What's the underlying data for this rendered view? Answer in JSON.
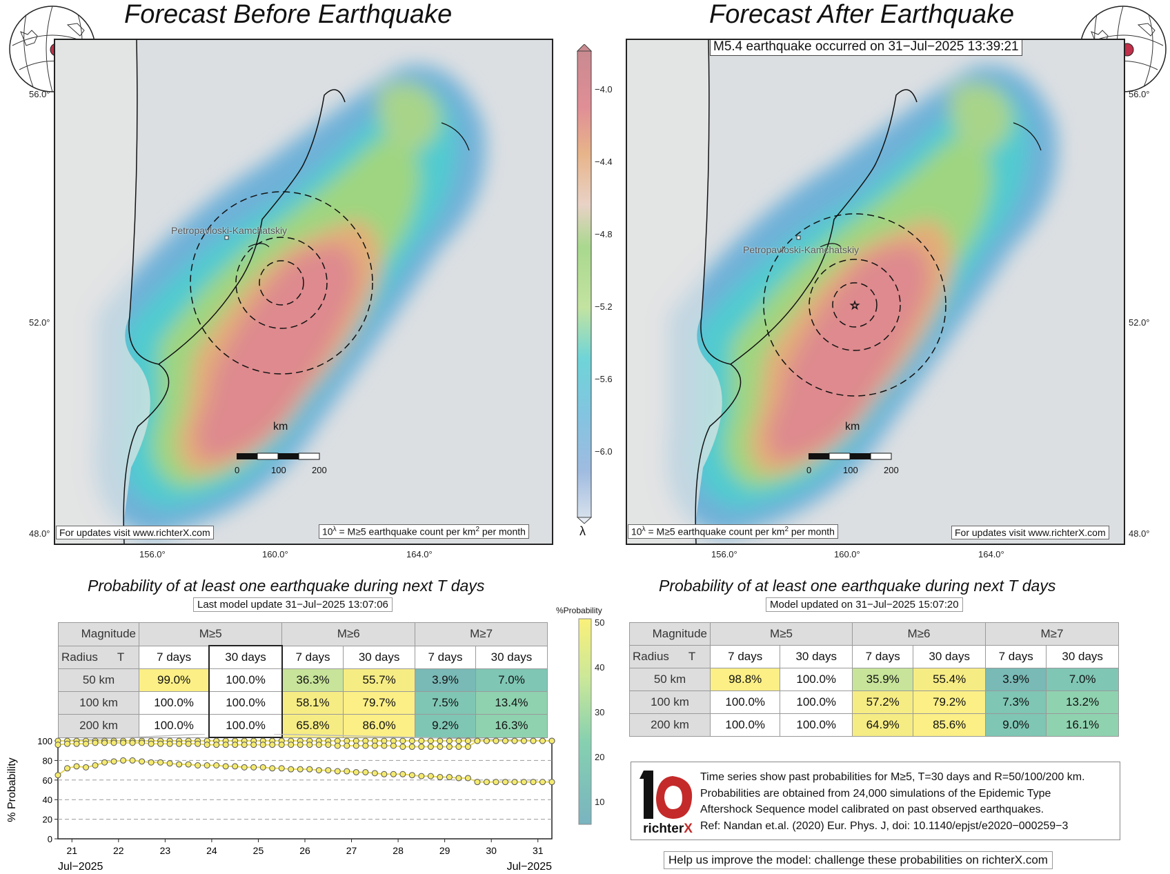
{
  "left_panel": {
    "title": "Forecast Before Earthquake",
    "city": "Petropavloski-Kamchatskiy",
    "km_label": "km",
    "scale": [
      "0",
      "100",
      "200"
    ],
    "footer_left": "For updates visit www.richterX.com",
    "footer_right_pre": "10",
    "footer_right_sup": "λ",
    "footer_right_mid": " = M≥5 earthquake count per km",
    "footer_right_sup2": "2",
    "footer_right_post": " per month",
    "lat_ticks": [
      "56.0°",
      "52.0°",
      "48.0°"
    ],
    "lon_ticks": [
      "156.0°",
      "160.0°",
      "164.0°"
    ]
  },
  "right_panel": {
    "title": "Forecast After Earthquake",
    "event": "M5.4 earthquake occurred on 31−Jul−2025 13:39:21",
    "city": "Petropavloski-Kamchatskiy",
    "km_label": "km",
    "scale": [
      "0",
      "100",
      "200"
    ],
    "footer_left_pre": "10",
    "footer_left_sup": "λ",
    "footer_left_mid": " = M≥5 earthquake count per km",
    "footer_left_sup2": "2",
    "footer_left_post": " per month",
    "footer_right": "For updates visit www.richterX.com",
    "lat_ticks": [
      "56.0°",
      "52.0°",
      "48.0°"
    ],
    "lon_ticks": [
      "156.0°",
      "160.0°",
      "164.0°"
    ]
  },
  "lambda_colorbar": {
    "ticks": [
      "−4.0",
      "−4.4",
      "−4.8",
      "−5.2",
      "−5.6",
      "−6.0"
    ],
    "label": "λ"
  },
  "prob_colorbar": {
    "label": "%Probability",
    "ticks": [
      "50",
      "40",
      "30",
      "20",
      "10"
    ]
  },
  "left_table": {
    "subtitle": "Probability of at least one earthquake during next T days",
    "update": "Last model update 31−Jul−2025 13:07:06",
    "corner_top": "Magnitude",
    "corner_radius": "Radius",
    "corner_t": "T",
    "mags": [
      "M≥5",
      "M≥6",
      "M≥7"
    ],
    "periods": [
      "7 days",
      "30 days",
      "7 days",
      "30 days",
      "7 days",
      "30 days"
    ],
    "rows": [
      {
        "radius": "50 km",
        "values": [
          "99.0%",
          "100.0%",
          "36.3%",
          "55.7%",
          "3.9%",
          "7.0%"
        ]
      },
      {
        "radius": "100 km",
        "values": [
          "100.0%",
          "100.0%",
          "58.1%",
          "79.7%",
          "7.5%",
          "13.4%"
        ]
      },
      {
        "radius": "200 km",
        "values": [
          "100.0%",
          "100.0%",
          "65.8%",
          "86.0%",
          "9.2%",
          "16.3%"
        ]
      }
    ]
  },
  "right_table": {
    "subtitle": "Probability of at least one earthquake during next T days",
    "update": "Model updated on 31−Jul−2025 15:07:20",
    "corner_top": "Magnitude",
    "corner_radius": "Radius",
    "corner_t": "T",
    "mags": [
      "M≥5",
      "M≥6",
      "M≥7"
    ],
    "periods": [
      "7 days",
      "30 days",
      "7 days",
      "30 days",
      "7 days",
      "30 days"
    ],
    "rows": [
      {
        "radius": "50 km",
        "values": [
          "98.8%",
          "100.0%",
          "35.9%",
          "55.4%",
          "3.9%",
          "7.0%"
        ]
      },
      {
        "radius": "100 km",
        "values": [
          "100.0%",
          "100.0%",
          "57.2%",
          "79.2%",
          "7.3%",
          "13.2%"
        ]
      },
      {
        "radius": "200 km",
        "values": [
          "100.0%",
          "100.0%",
          "64.9%",
          "85.6%",
          "9.0%",
          "16.1%"
        ]
      }
    ]
  },
  "chart_data": {
    "type": "line",
    "ylabel": "% Probability",
    "ylim": [
      0,
      100
    ],
    "yticks": [
      "100",
      "80",
      "60",
      "40",
      "20",
      "0"
    ],
    "xticks": [
      "21",
      "22",
      "23",
      "24",
      "25",
      "26",
      "27",
      "28",
      "29",
      "30",
      "31"
    ],
    "xlabel_left": "Jul−2025",
    "xlabel_right": "Jul−2025",
    "x": [
      20.7,
      20.9,
      21.1,
      21.3,
      21.5,
      21.7,
      21.9,
      22.1,
      22.3,
      22.5,
      22.7,
      22.9,
      23.1,
      23.3,
      23.5,
      23.7,
      23.9,
      24.1,
      24.3,
      24.5,
      24.7,
      24.9,
      25.1,
      25.3,
      25.5,
      25.7,
      25.9,
      26.1,
      26.3,
      26.5,
      26.7,
      26.9,
      27.1,
      27.3,
      27.5,
      27.7,
      27.9,
      28.1,
      28.3,
      28.5,
      28.7,
      28.9,
      29.1,
      29.3,
      29.5,
      29.7,
      29.9,
      30.1,
      30.3,
      30.5,
      30.7,
      30.9,
      31.1,
      31.3
    ],
    "series": [
      {
        "values": [
          100,
          100,
          100,
          100,
          100,
          100,
          100,
          100,
          100,
          100,
          100,
          100,
          100,
          100,
          100,
          100,
          100,
          100,
          100,
          100,
          100,
          100,
          100,
          100,
          100,
          100,
          100,
          100,
          100,
          100,
          100,
          100,
          100,
          100,
          100,
          100,
          100,
          100,
          100,
          100,
          100,
          100,
          100,
          100,
          100,
          100,
          100,
          100,
          100,
          100,
          100,
          100,
          100,
          100
        ]
      },
      {
        "values": [
          96,
          97,
          97,
          97,
          98,
          98,
          98,
          98,
          98,
          98,
          97,
          97,
          97,
          97,
          97,
          97,
          96,
          96,
          96,
          96,
          96,
          96,
          96,
          96,
          96,
          96,
          96,
          96,
          96,
          96,
          95,
          95,
          95,
          95,
          95,
          95,
          95,
          94,
          94,
          94,
          94,
          94,
          94,
          94,
          94,
          100,
          100,
          100,
          100,
          100,
          100,
          100,
          100,
          100
        ]
      },
      {
        "values": [
          65,
          72,
          74,
          73,
          75,
          78,
          79,
          80,
          80,
          79,
          78,
          78,
          77,
          76,
          76,
          75,
          75,
          75,
          74,
          74,
          73,
          73,
          73,
          72,
          72,
          71,
          71,
          71,
          70,
          70,
          69,
          69,
          68,
          68,
          67,
          66,
          66,
          66,
          65,
          64,
          64,
          63,
          63,
          62,
          62,
          58,
          58,
          58,
          58,
          58,
          58,
          58,
          58,
          58
        ]
      }
    ]
  }
}
